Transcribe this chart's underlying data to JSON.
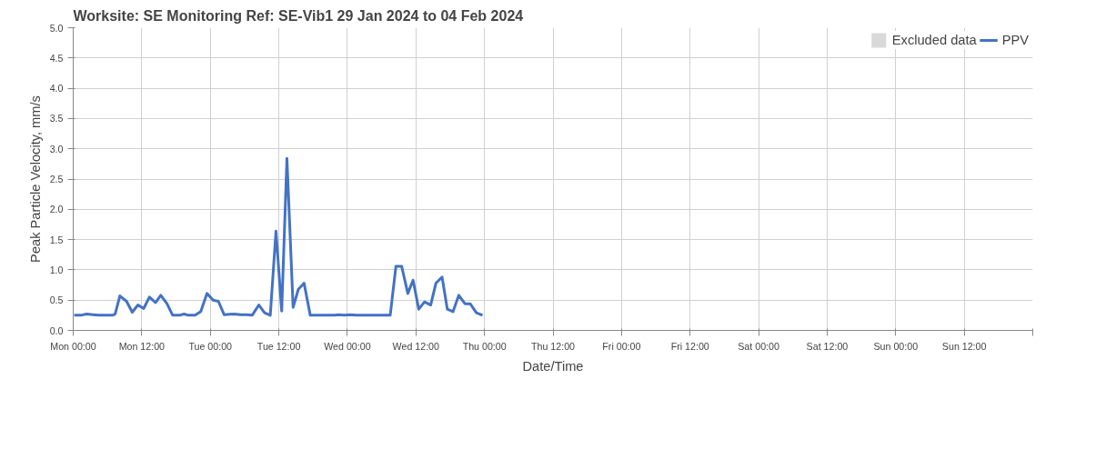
{
  "chart_data": {
    "type": "line",
    "title": "Worksite: SE    Monitoring Ref: SE-Vib1     29 Jan 2024 to 04 Feb 2024",
    "xlabel": "Date/Time",
    "ylabel": "Peak Particle Velocity, mm/s",
    "x": [
      "2024-01-29T00:10",
      "2024-01-29T01:20",
      "2024-01-29T02:20",
      "2024-01-29T03:25",
      "2024-01-29T04:30",
      "2024-01-29T06:55",
      "2024-01-29T07:20",
      "2024-01-29T08:10",
      "2024-01-29T09:20",
      "2024-01-29T10:20",
      "2024-01-29T11:20",
      "2024-01-29T12:20",
      "2024-01-29T13:20",
      "2024-01-29T14:25",
      "2024-01-29T15:20",
      "2024-01-29T16:25",
      "2024-01-29T17:25",
      "2024-01-29T18:35",
      "2024-01-29T19:25",
      "2024-01-29T20:10",
      "2024-01-29T21:20",
      "2024-01-29T22:20",
      "2024-01-29T23:25",
      "2024-01-30T00:30",
      "2024-01-30T01:25",
      "2024-01-30T02:25",
      "2024-01-30T04:10",
      "2024-01-30T05:20",
      "2024-01-30T06:20",
      "2024-01-30T07:20",
      "2024-01-30T08:30",
      "2024-01-30T09:30",
      "2024-01-30T10:30",
      "2024-01-30T11:30",
      "2024-01-30T12:30",
      "2024-01-30T13:25",
      "2024-01-30T14:30",
      "2024-01-30T15:25",
      "2024-01-30T16:25",
      "2024-01-30T17:30",
      "2024-01-30T21:50",
      "2024-01-30T22:25",
      "2024-01-30T23:25",
      "2024-01-31T00:30",
      "2024-01-31T01:30",
      "2024-01-31T07:30",
      "2024-01-31T08:30",
      "2024-01-31T09:30",
      "2024-01-31T10:35",
      "2024-01-31T11:30",
      "2024-01-31T12:30",
      "2024-01-31T13:30",
      "2024-01-31T14:35",
      "2024-01-31T15:30",
      "2024-01-31T16:35",
      "2024-01-31T17:30",
      "2024-01-31T18:30",
      "2024-01-31T19:30",
      "2024-01-31T20:35",
      "2024-01-31T21:30",
      "2024-01-31T22:35",
      "2024-01-31T23:40"
    ],
    "series": [
      {
        "name": "Excluded data",
        "type": "bar",
        "color": "#d9d9d9",
        "values": [
          null,
          null,
          null,
          null,
          null,
          null,
          null,
          null,
          null,
          null,
          null,
          null,
          null,
          null,
          null,
          null,
          null,
          null,
          null,
          null,
          null,
          null,
          null,
          null,
          null,
          null,
          null,
          null,
          null,
          null,
          null,
          null,
          null,
          null,
          null,
          null,
          null,
          null,
          null,
          null,
          null,
          null,
          null,
          null,
          null,
          null,
          null,
          null,
          null,
          null,
          null,
          null,
          null,
          null,
          null,
          null,
          null,
          null,
          null,
          null,
          null,
          null
        ]
      },
      {
        "name": "PPV",
        "color": "#4472c4",
        "values": [
          0.25,
          0.25,
          0.27,
          0.26,
          0.25,
          0.25,
          0.27,
          0.57,
          0.48,
          0.3,
          0.42,
          0.36,
          0.55,
          0.46,
          0.58,
          0.44,
          0.25,
          0.25,
          0.27,
          0.25,
          0.25,
          0.31,
          0.61,
          0.5,
          0.48,
          0.26,
          0.27,
          0.26,
          0.26,
          0.25,
          0.42,
          0.29,
          0.25,
          1.64,
          0.32,
          2.84,
          0.38,
          0.68,
          0.78,
          0.25,
          0.25,
          0.26,
          0.25,
          0.26,
          0.25,
          0.25,
          1.06,
          1.06,
          0.61,
          0.83,
          0.35,
          0.47,
          0.42,
          0.78,
          0.88,
          0.35,
          0.31,
          0.58,
          0.44,
          0.44,
          0.29,
          0.25
        ]
      }
    ],
    "xlim": [
      "2024-01-29T00:00",
      "2024-02-05T00:00"
    ],
    "xticks": [
      {
        "value": "2024-01-29T00:00",
        "label": "Mon 00:00"
      },
      {
        "value": "2024-01-29T12:00",
        "label": "Mon 12:00"
      },
      {
        "value": "2024-01-30T00:00",
        "label": "Tue 00:00"
      },
      {
        "value": "2024-01-30T12:00",
        "label": "Tue 12:00"
      },
      {
        "value": "2024-01-31T00:00",
        "label": "Wed 00:00"
      },
      {
        "value": "2024-01-31T12:00",
        "label": "Wed 12:00"
      },
      {
        "value": "2024-02-01T00:00",
        "label": "Thu 00:00"
      },
      {
        "value": "2024-02-01T12:00",
        "label": "Thu 12:00"
      },
      {
        "value": "2024-02-02T00:00",
        "label": "Fri 00:00"
      },
      {
        "value": "2024-02-02T12:00",
        "label": "Fri 12:00"
      },
      {
        "value": "2024-02-03T00:00",
        "label": "Sat 00:00"
      },
      {
        "value": "2024-02-03T12:00",
        "label": "Sat 12:00"
      },
      {
        "value": "2024-02-04T00:00",
        "label": "Sun 00:00"
      },
      {
        "value": "2024-02-04T12:00",
        "label": "Sun 12:00"
      },
      {
        "value": "2024-02-05T00:00",
        "label": null
      }
    ],
    "ylim": [
      0,
      5
    ],
    "yticks": [
      {
        "value": 0,
        "label": "0.0"
      },
      {
        "value": 0.5,
        "label": "0.5"
      },
      {
        "value": 1,
        "label": "1.0"
      },
      {
        "value": 1.5,
        "label": "1.5"
      },
      {
        "value": 2,
        "label": "2.0"
      },
      {
        "value": 2.5,
        "label": "2.5"
      },
      {
        "value": 3,
        "label": "3.0"
      },
      {
        "value": 3.5,
        "label": "3.5"
      },
      {
        "value": 4,
        "label": "4.0"
      },
      {
        "value": 4.5,
        "label": "4.5"
      },
      {
        "value": 5,
        "label": "5.0"
      }
    ],
    "grid": true,
    "legend": "top right",
    "marker": "none",
    "line_style": "solid"
  }
}
